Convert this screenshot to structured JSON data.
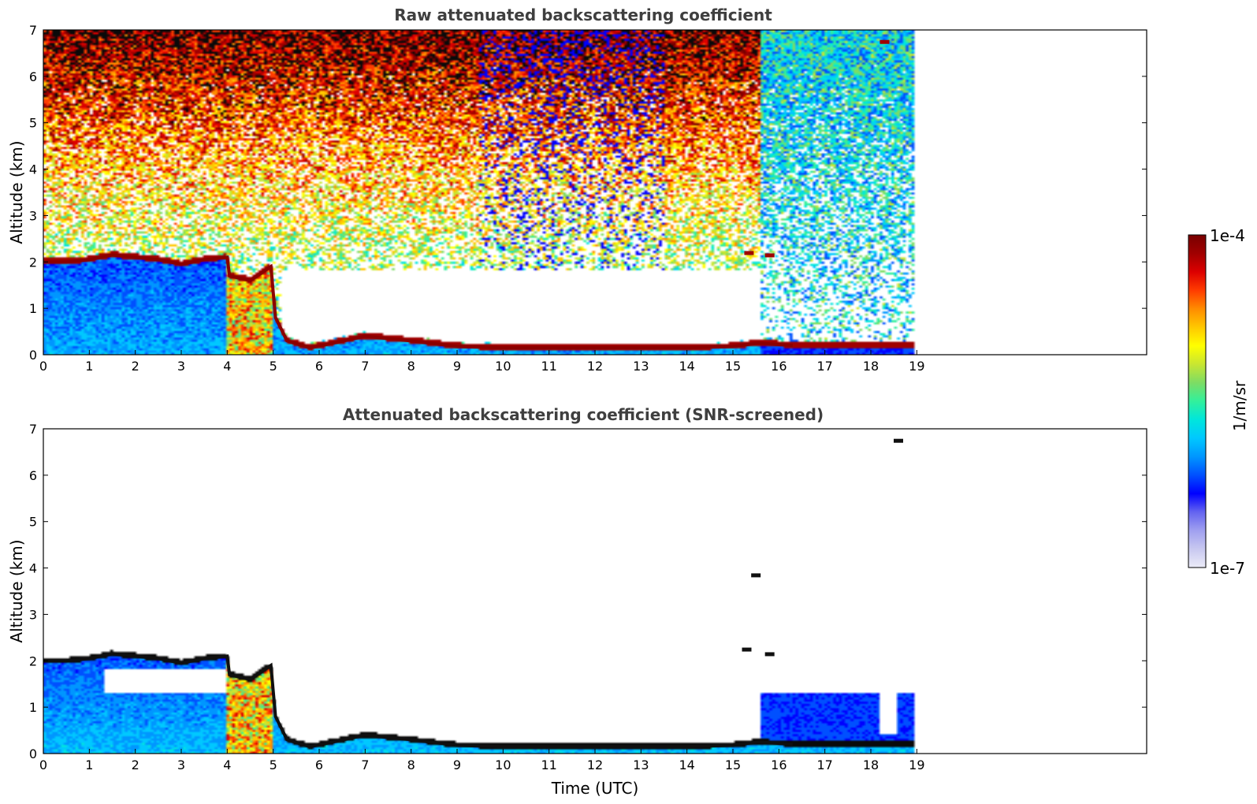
{
  "colorbar": {
    "max_label": "1e-4",
    "min_label": "1e-7",
    "unit_label": "1/m/sr",
    "log_range": [
      -7,
      -4
    ],
    "colors": [
      "#ececf8",
      "#c8c8f0",
      "#a0a0f0",
      "#6464f0",
      "#0000ff",
      "#0050ff",
      "#0096ff",
      "#00c8ff",
      "#00e6dc",
      "#32f09c",
      "#7ddc64",
      "#c8e632",
      "#ffff00",
      "#ffc800",
      "#ff8c00",
      "#ff3c00",
      "#dc0000",
      "#a00000",
      "#780000"
    ]
  },
  "chart_data": [
    {
      "type": "heatmap",
      "title": "Raw attenuated backscattering coefficient",
      "xlabel": "",
      "ylabel": "Altitude (km)",
      "xlim": [
        0,
        24
      ],
      "ylim": [
        0,
        7
      ],
      "xticks": [
        "0",
        "1",
        "2",
        "3",
        "4",
        "5",
        "6",
        "7",
        "8",
        "9",
        "10",
        "11",
        "12",
        "13",
        "14",
        "15",
        "16",
        "17",
        "18",
        "19"
      ],
      "yticks": [
        "0",
        "1",
        "2",
        "3",
        "4",
        "5",
        "6",
        "7"
      ],
      "data_end_hour": 18.95,
      "boundary_layer_top_km": [
        [
          0.0,
          2.0
        ],
        [
          0.5,
          2.0
        ],
        [
          1.0,
          2.05
        ],
        [
          1.5,
          2.15
        ],
        [
          2.0,
          2.1
        ],
        [
          2.5,
          2.05
        ],
        [
          3.0,
          1.95
        ],
        [
          3.5,
          2.05
        ],
        [
          4.0,
          2.1
        ],
        [
          4.05,
          1.7
        ],
        [
          4.5,
          1.6
        ],
        [
          4.95,
          1.9
        ],
        [
          5.05,
          0.8
        ],
        [
          5.3,
          0.3
        ],
        [
          5.8,
          0.15
        ],
        [
          6.3,
          0.25
        ],
        [
          7.0,
          0.4
        ],
        [
          8.0,
          0.3
        ],
        [
          9.0,
          0.18
        ],
        [
          10.0,
          0.15
        ],
        [
          12.0,
          0.15
        ],
        [
          14.0,
          0.15
        ],
        [
          15.0,
          0.18
        ],
        [
          15.55,
          0.25
        ],
        [
          16.3,
          0.2
        ]
      ],
      "cloud_patches": [
        {
          "x": 18.3,
          "y": 6.75
        },
        {
          "x": 15.35,
          "y": 2.2
        },
        {
          "x": 15.8,
          "y": 2.15
        }
      ]
    },
    {
      "type": "heatmap",
      "title": "Attenuated backscattering coefficient (SNR-screened)",
      "xlabel": "Time (UTC)",
      "ylabel": "Altitude (km)",
      "xlim": [
        0,
        24
      ],
      "ylim": [
        0,
        7
      ],
      "xticks": [
        "0",
        "1",
        "2",
        "3",
        "4",
        "5",
        "6",
        "7",
        "8",
        "9",
        "10",
        "11",
        "12",
        "13",
        "14",
        "15",
        "16",
        "17",
        "18",
        "19"
      ],
      "yticks": [
        "0",
        "1",
        "2",
        "3",
        "4",
        "5",
        "6",
        "7"
      ],
      "data_end_hour": 18.95,
      "boundary_layer_top_km": [
        [
          0.0,
          2.0
        ],
        [
          0.5,
          2.0
        ],
        [
          1.0,
          2.05
        ],
        [
          1.5,
          2.15
        ],
        [
          2.0,
          2.1
        ],
        [
          2.5,
          2.05
        ],
        [
          3.0,
          1.95
        ],
        [
          3.5,
          2.05
        ],
        [
          4.0,
          2.1
        ],
        [
          4.05,
          1.7
        ],
        [
          4.5,
          1.6
        ],
        [
          4.95,
          1.9
        ],
        [
          5.05,
          0.8
        ],
        [
          5.3,
          0.3
        ],
        [
          5.8,
          0.15
        ],
        [
          6.3,
          0.25
        ],
        [
          7.0,
          0.4
        ],
        [
          8.0,
          0.3
        ],
        [
          9.0,
          0.18
        ],
        [
          10.0,
          0.15
        ],
        [
          12.0,
          0.15
        ],
        [
          14.0,
          0.15
        ],
        [
          15.0,
          0.18
        ],
        [
          15.55,
          0.25
        ],
        [
          16.3,
          0.2
        ]
      ],
      "cloud_patches": [
        {
          "x": 18.6,
          "y": 6.75
        },
        {
          "x": 15.5,
          "y": 3.85
        },
        {
          "x": 15.3,
          "y": 2.25
        },
        {
          "x": 15.8,
          "y": 2.15
        }
      ]
    }
  ]
}
